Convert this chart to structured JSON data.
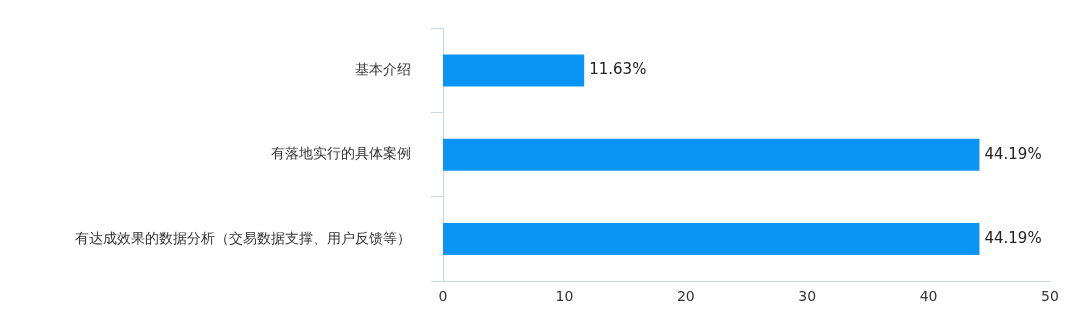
{
  "chart_data": {
    "type": "bar",
    "orientation": "horizontal",
    "categories": [
      "基本介绍",
      "有落地实行的具体案例",
      "有达成效果的数据分析（交易数据支撑、用户反馈等）"
    ],
    "values": [
      11.63,
      44.19,
      44.19
    ],
    "value_labels": [
      "11.63%",
      "44.19%",
      "44.19%"
    ],
    "color": "#0994f6",
    "xlim": [
      0,
      50
    ],
    "xticks": [
      0,
      10,
      20,
      30,
      40,
      50
    ],
    "grid": false,
    "legend": false
  }
}
